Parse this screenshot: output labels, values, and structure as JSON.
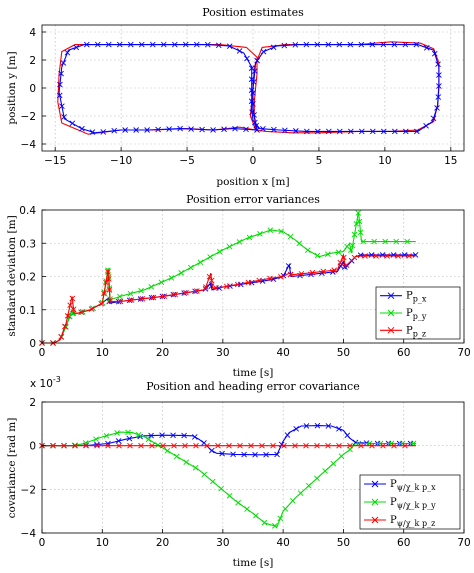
{
  "colors": {
    "blue": "#0000ff",
    "green": "#00dd00",
    "red": "#ff0000"
  },
  "chart_data": [
    {
      "type": "line",
      "title": "Position estimates",
      "xlabel": "position x [m]",
      "ylabel": "position y [m]",
      "xlim": [
        -16,
        16
      ],
      "ylim": [
        -4.5,
        4.5
      ],
      "xticks": [
        -15,
        -10,
        -5,
        0,
        5,
        10,
        15
      ],
      "yticks": [
        -4,
        -2,
        0,
        2,
        4
      ],
      "grid": true,
      "series": [
        {
          "color": "red",
          "marker": "none",
          "points": [
            [
              0.2,
              -3.0
            ],
            [
              -1.0,
              -2.8
            ],
            [
              -3.0,
              -3.0
            ],
            [
              -5.0,
              -2.9
            ],
            [
              -7.5,
              -3.0
            ],
            [
              -10.0,
              -3.0
            ],
            [
              -12.5,
              -3.3
            ],
            [
              -14.5,
              -2.5
            ],
            [
              -14.8,
              -1.0
            ],
            [
              -14.7,
              1.0
            ],
            [
              -14.5,
              2.6
            ],
            [
              -13.5,
              3.1
            ],
            [
              -11.0,
              3.1
            ],
            [
              -8.0,
              3.1
            ],
            [
              -5.0,
              3.1
            ],
            [
              -2.5,
              3.1
            ],
            [
              -0.5,
              2.9
            ],
            [
              0.3,
              2.2
            ],
            [
              0.3,
              1.0
            ],
            [
              0.2,
              0.0
            ],
            [
              0.1,
              -1.0
            ],
            [
              0.1,
              -2.0
            ],
            [
              0.2,
              -3.0
            ],
            [
              1.0,
              -3.1
            ],
            [
              3.0,
              -3.2
            ],
            [
              5.0,
              -3.2
            ],
            [
              8.0,
              -3.1
            ],
            [
              10.5,
              -3.1
            ],
            [
              12.5,
              -3.0
            ],
            [
              13.7,
              -2.4
            ],
            [
              14.0,
              -1.2
            ],
            [
              14.1,
              0.3
            ],
            [
              14.1,
              1.8
            ],
            [
              13.7,
              2.8
            ],
            [
              12.7,
              3.2
            ],
            [
              10.5,
              3.3
            ],
            [
              8.0,
              3.1
            ],
            [
              5.0,
              3.1
            ],
            [
              2.5,
              3.1
            ],
            [
              0.7,
              2.9
            ],
            [
              0.1,
              1.5
            ],
            [
              0.0,
              0.0
            ],
            [
              -0.2,
              -2.0
            ],
            [
              0.2,
              -3.0
            ]
          ]
        },
        {
          "color": "blue",
          "marker": "x",
          "points": [
            [
              0.3,
              -3.0
            ],
            [
              -1.5,
              -2.9
            ],
            [
              -3.0,
              -3.0
            ],
            [
              -5.5,
              -2.9
            ],
            [
              -8.0,
              -3.0
            ],
            [
              -10.0,
              -3.0
            ],
            [
              -12.0,
              -3.2
            ],
            [
              -13.0,
              -2.9
            ],
            [
              -14.3,
              -2.2
            ],
            [
              -14.7,
              -0.3
            ],
            [
              -14.5,
              1.5
            ],
            [
              -14.0,
              2.7
            ],
            [
              -12.8,
              3.1
            ],
            [
              -11.0,
              3.1
            ],
            [
              -8.5,
              3.1
            ],
            [
              -6.0,
              3.1
            ],
            [
              -3.5,
              3.1
            ],
            [
              -1.8,
              3.0
            ],
            [
              -0.7,
              2.5
            ],
            [
              -0.1,
              1.5
            ],
            [
              -0.1,
              0.5
            ],
            [
              -0.1,
              -0.5
            ],
            [
              -0.1,
              -1.5
            ],
            [
              0.0,
              -2.3
            ],
            [
              0.5,
              -2.9
            ],
            [
              2.0,
              -3.0
            ],
            [
              4.0,
              -3.1
            ],
            [
              6.5,
              -3.1
            ],
            [
              9.0,
              -3.1
            ],
            [
              11.0,
              -3.1
            ],
            [
              12.5,
              -3.1
            ],
            [
              13.6,
              -2.4
            ],
            [
              14.0,
              -1.3
            ],
            [
              14.1,
              0.0
            ],
            [
              14.1,
              1.5
            ],
            [
              13.7,
              2.7
            ],
            [
              12.5,
              3.1
            ],
            [
              10.5,
              3.1
            ],
            [
              8.0,
              3.1
            ],
            [
              5.5,
              3.1
            ],
            [
              3.5,
              3.1
            ],
            [
              1.8,
              3.0
            ],
            [
              0.8,
              2.6
            ],
            [
              0.2,
              1.8
            ],
            [
              0.1,
              0.8
            ],
            [
              0.0,
              0.0
            ],
            [
              0.0,
              -1.5
            ],
            [
              0.3,
              -3.0
            ]
          ]
        }
      ]
    },
    {
      "type": "line",
      "title": "Position error variances",
      "xlabel": "time [s]",
      "ylabel": "standard deviation [m]",
      "xlim": [
        0,
        70
      ],
      "ylim": [
        0,
        0.4
      ],
      "xticks": [
        0,
        10,
        20,
        30,
        40,
        50,
        60,
        70
      ],
      "yticks": [
        0,
        0.1,
        0.2,
        0.3,
        0.4
      ],
      "grid": true,
      "legend": "lower-right",
      "series": [
        {
          "name": "P_{p_x}",
          "color": "blue",
          "marker": "x",
          "points": [
            [
              0,
              0
            ],
            [
              2,
              0
            ],
            [
              3,
              0.01
            ],
            [
              4,
              0.05
            ],
            [
              5,
              0.1
            ],
            [
              5.2,
              0.085
            ],
            [
              6,
              0.09
            ],
            [
              8,
              0.1
            ],
            [
              10,
              0.12
            ],
            [
              11,
              0.135
            ],
            [
              11.2,
              0.12
            ],
            [
              13,
              0.125
            ],
            [
              20,
              0.14
            ],
            [
              27,
              0.16
            ],
            [
              28,
              0.18
            ],
            [
              28.2,
              0.16
            ],
            [
              30,
              0.168
            ],
            [
              38,
              0.19
            ],
            [
              40,
              0.2
            ],
            [
              41,
              0.235
            ],
            [
              41.3,
              0.2
            ],
            [
              44,
              0.205
            ],
            [
              49,
              0.215
            ],
            [
              50,
              0.245
            ],
            [
              50.3,
              0.225
            ],
            [
              52,
              0.26
            ],
            [
              53,
              0.265
            ],
            [
              62,
              0.265
            ]
          ]
        },
        {
          "name": "P_{p_y}",
          "color": "green",
          "marker": "x",
          "points": [
            [
              0,
              0
            ],
            [
              2,
              0
            ],
            [
              3,
              0.01
            ],
            [
              4,
              0.05
            ],
            [
              5,
              0.1
            ],
            [
              5.2,
              0.085
            ],
            [
              6,
              0.09
            ],
            [
              8,
              0.1
            ],
            [
              10,
              0.12
            ],
            [
              11,
              0.225
            ],
            [
              11.3,
              0.13
            ],
            [
              13,
              0.14
            ],
            [
              17,
              0.16
            ],
            [
              22,
              0.2
            ],
            [
              27,
              0.25
            ],
            [
              30,
              0.28
            ],
            [
              34,
              0.315
            ],
            [
              38,
              0.34
            ],
            [
              40,
              0.335
            ],
            [
              42,
              0.31
            ],
            [
              44,
              0.28
            ],
            [
              46,
              0.26
            ],
            [
              48,
              0.27
            ],
            [
              50,
              0.275
            ],
            [
              51,
              0.3
            ],
            [
              51.3,
              0.27
            ],
            [
              52.5,
              0.395
            ],
            [
              53,
              0.305
            ],
            [
              62,
              0.305
            ]
          ]
        },
        {
          "name": "P_{p_z}",
          "color": "red",
          "marker": "x",
          "points": [
            [
              0,
              0
            ],
            [
              2,
              0
            ],
            [
              3,
              0.01
            ],
            [
              4,
              0.06
            ],
            [
              5,
              0.14
            ],
            [
              5.3,
              0.09
            ],
            [
              6,
              0.09
            ],
            [
              8,
              0.1
            ],
            [
              10,
              0.12
            ],
            [
              11,
              0.22
            ],
            [
              11.3,
              0.125
            ],
            [
              13,
              0.125
            ],
            [
              20,
              0.14
            ],
            [
              27,
              0.16
            ],
            [
              28,
              0.21
            ],
            [
              28.3,
              0.165
            ],
            [
              30,
              0.168
            ],
            [
              38,
              0.195
            ],
            [
              40,
              0.2
            ],
            [
              41,
              0.21
            ],
            [
              41.3,
              0.205
            ],
            [
              44,
              0.21
            ],
            [
              49,
              0.22
            ],
            [
              50,
              0.265
            ],
            [
              50.3,
              0.23
            ],
            [
              52,
              0.26
            ],
            [
              53,
              0.262
            ],
            [
              62,
              0.262
            ]
          ]
        }
      ]
    },
    {
      "type": "line",
      "title": "Position and heading error covariance",
      "xlabel": "time [s]",
      "ylabel": "covariance [rad m]",
      "scale_note": "x 10^-3",
      "xlim": [
        0,
        70
      ],
      "ylim": [
        -4,
        2
      ],
      "xticks": [
        0,
        10,
        20,
        30,
        40,
        50,
        60,
        70
      ],
      "yticks": [
        -4,
        -2,
        0,
        2
      ],
      "grid": true,
      "legend": "lower-right",
      "series": [
        {
          "name": "P_{ψ/χ_k p_x}",
          "color": "blue",
          "marker": "x",
          "points": [
            [
              0,
              0
            ],
            [
              5,
              0
            ],
            [
              8,
              0.02
            ],
            [
              11,
              0.1
            ],
            [
              14,
              0.3
            ],
            [
              17,
              0.45
            ],
            [
              20,
              0.48
            ],
            [
              23,
              0.47
            ],
            [
              25,
              0.45
            ],
            [
              26,
              0.3
            ],
            [
              27,
              0.1
            ],
            [
              28,
              -0.2
            ],
            [
              29,
              -0.35
            ],
            [
              32,
              -0.4
            ],
            [
              36,
              -0.42
            ],
            [
              39,
              -0.4
            ],
            [
              40,
              0.2
            ],
            [
              41,
              0.6
            ],
            [
              43,
              0.9
            ],
            [
              46,
              0.92
            ],
            [
              48,
              0.9
            ],
            [
              50,
              0.7
            ],
            [
              51,
              0.35
            ],
            [
              52,
              0.15
            ],
            [
              55,
              0.1
            ],
            [
              60,
              0.1
            ],
            [
              62,
              0.1
            ]
          ]
        },
        {
          "name": "P_{ψ/χ_k p_y}",
          "color": "green",
          "marker": "x",
          "points": [
            [
              0,
              0
            ],
            [
              5,
              0
            ],
            [
              7,
              0.1
            ],
            [
              10,
              0.4
            ],
            [
              13,
              0.62
            ],
            [
              15,
              0.6
            ],
            [
              17,
              0.4
            ],
            [
              20,
              -0.1
            ],
            [
              23,
              -0.6
            ],
            [
              26,
              -1.1
            ],
            [
              29,
              -1.8
            ],
            [
              32,
              -2.5
            ],
            [
              35,
              -3.1
            ],
            [
              37,
              -3.55
            ],
            [
              39,
              -3.7
            ],
            [
              40,
              -3.0
            ],
            [
              42,
              -2.4
            ],
            [
              44,
              -1.9
            ],
            [
              46,
              -1.4
            ],
            [
              48,
              -0.9
            ],
            [
              50,
              -0.4
            ],
            [
              51,
              -0.2
            ],
            [
              52,
              0.1
            ],
            [
              55,
              0.1
            ],
            [
              62,
              0.1
            ]
          ]
        },
        {
          "name": "P_{ψ/χ_k p_z}",
          "color": "red",
          "marker": "x",
          "points": [
            [
              0,
              0
            ],
            [
              62,
              0
            ]
          ]
        }
      ]
    }
  ]
}
